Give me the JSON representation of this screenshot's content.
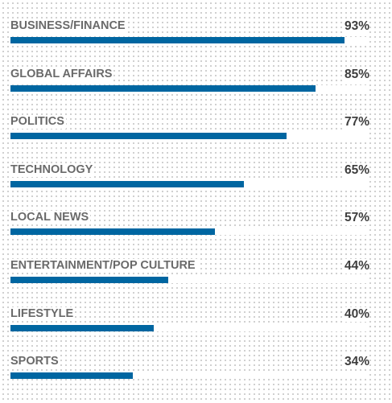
{
  "chart_data": {
    "type": "bar",
    "orientation": "horizontal",
    "title": "",
    "xlabel": "",
    "ylabel": "",
    "xlim": [
      0,
      100
    ],
    "grid": false,
    "bar_color": "#0066a1",
    "categories": [
      "BUSINESS/FINANCE",
      "GLOBAL AFFAIRS",
      "POLITICS",
      "TECHNOLOGY",
      "LOCAL NEWS",
      "ENTERTAINMENT/POP CULTURE",
      "LIFESTYLE",
      "SPORTS"
    ],
    "values": [
      93,
      85,
      77,
      65,
      57,
      44,
      40,
      34
    ],
    "value_labels": [
      "93%",
      "85%",
      "77%",
      "65%",
      "57%",
      "44%",
      "40%",
      "34%"
    ]
  }
}
